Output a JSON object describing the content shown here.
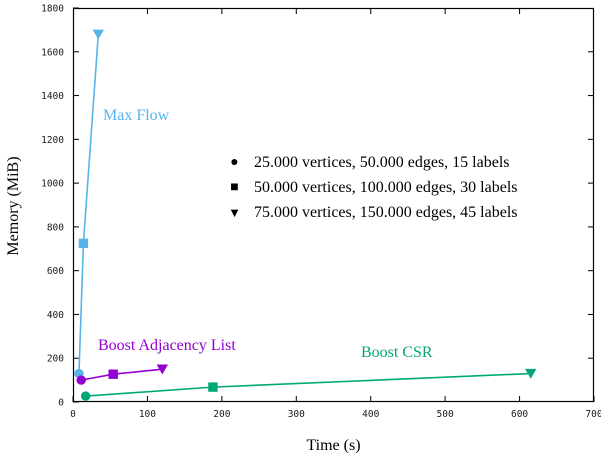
{
  "chart_data": {
    "type": "line",
    "title": "",
    "xlabel": "Time (s)",
    "ylabel": "Memory (MiB)",
    "xlim": [
      0,
      700
    ],
    "ylim": [
      0,
      1800
    ],
    "x_ticks": [
      0,
      100,
      200,
      300,
      400,
      500,
      600,
      700
    ],
    "y_ticks": [
      0,
      200,
      400,
      600,
      800,
      1000,
      1200,
      1400,
      1600,
      1800
    ],
    "grid": false,
    "point_markers_by_size": [
      "circle",
      "square",
      "triangle-down"
    ],
    "series": [
      {
        "name": "Max Flow",
        "color": "#56b4e9",
        "points": [
          [
            8,
            130
          ],
          [
            14,
            725
          ],
          [
            34,
            1680
          ]
        ]
      },
      {
        "name": "Boost Adjacency List",
        "color": "#9400d3",
        "points": [
          [
            11,
            100
          ],
          [
            54,
            127
          ],
          [
            120,
            150
          ]
        ]
      },
      {
        "name": "Boost CSR",
        "color": "#00a878",
        "points": [
          [
            17,
            27
          ],
          [
            188,
            68
          ],
          [
            615,
            130
          ]
        ]
      }
    ],
    "legend": {
      "position": "center-right-upper",
      "entries": [
        {
          "marker": "circle-icon",
          "glyph": "●",
          "label": "25.000 vertices, 50.000 edges, 15 labels"
        },
        {
          "marker": "square-icon",
          "glyph": "■",
          "label": "50.000 vertices, 100.000 edges, 30 labels"
        },
        {
          "marker": "triangle-down-icon",
          "glyph": "▼",
          "label": "75.000 vertices, 150.000 edges, 45 labels"
        }
      ]
    }
  }
}
